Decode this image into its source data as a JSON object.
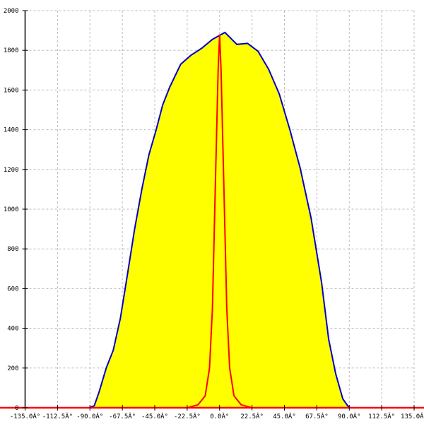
{
  "chart_data": {
    "type": "area",
    "title": "",
    "xlabel": "",
    "ylabel": "",
    "xlim": [
      -135,
      135
    ],
    "ylim": [
      0,
      2000
    ],
    "grid": true,
    "x_ticks": [
      -135,
      -112.5,
      -90,
      -67.5,
      -45,
      -22.5,
      0,
      22.5,
      45,
      67.5,
      90,
      112.5,
      135
    ],
    "x_tick_labels": [
      "-135.0Â°",
      "-112.5Â°",
      "-90.0Â°",
      "-67.5Â°",
      "-45.0Â°",
      "-22.5Â°",
      "0.0Â°",
      "22.5Â°",
      "45.0Â°",
      "67.5Â°",
      "90.0Â°",
      "112.5Â°",
      "135.0Â°"
    ],
    "y_ticks": [
      0,
      200,
      400,
      600,
      800,
      1000,
      1200,
      1400,
      1600,
      1800,
      2000
    ],
    "y_tick_labels": [
      "0",
      "200",
      "400",
      "600",
      "800",
      "1000",
      "1200",
      "1400",
      "1600",
      "1800",
      "2000"
    ],
    "series": [
      {
        "color": "#0000cc",
        "fill": "#ffff00",
        "x": [
          -90.4,
          -87,
          -83.6,
          -78.7,
          -73.8,
          -68.9,
          -64,
          -59,
          -54,
          -49,
          -44,
          -39.5,
          -34.6,
          -27,
          -19.9,
          -12.5,
          -5,
          3.7,
          12,
          19.4,
          26.7,
          34,
          41.4,
          48.8,
          56,
          63.5,
          70.8,
          75.7,
          80.6,
          85.5,
          88.9,
          90.4
        ],
        "y": [
          0,
          10,
          80,
          200,
          290,
          450,
          670,
          900,
          1100,
          1275,
          1400,
          1525,
          1615,
          1730,
          1775,
          1810,
          1855,
          1890,
          1830,
          1835,
          1795,
          1705,
          1580,
          1400,
          1205,
          955,
          630,
          345,
          170,
          45,
          10,
          0
        ]
      },
      {
        "color": "#ff0000",
        "x": [
          -22,
          -20,
          -15,
          -10,
          -7,
          -5,
          -3,
          -1,
          0,
          1,
          3,
          5,
          7,
          10,
          15,
          20,
          22
        ],
        "y": [
          0,
          5,
          15,
          60,
          200,
          500,
          1100,
          1700,
          1880,
          1700,
          1100,
          500,
          200,
          60,
          15,
          5,
          0
        ]
      }
    ],
    "baseline_color": "#ff0000"
  }
}
